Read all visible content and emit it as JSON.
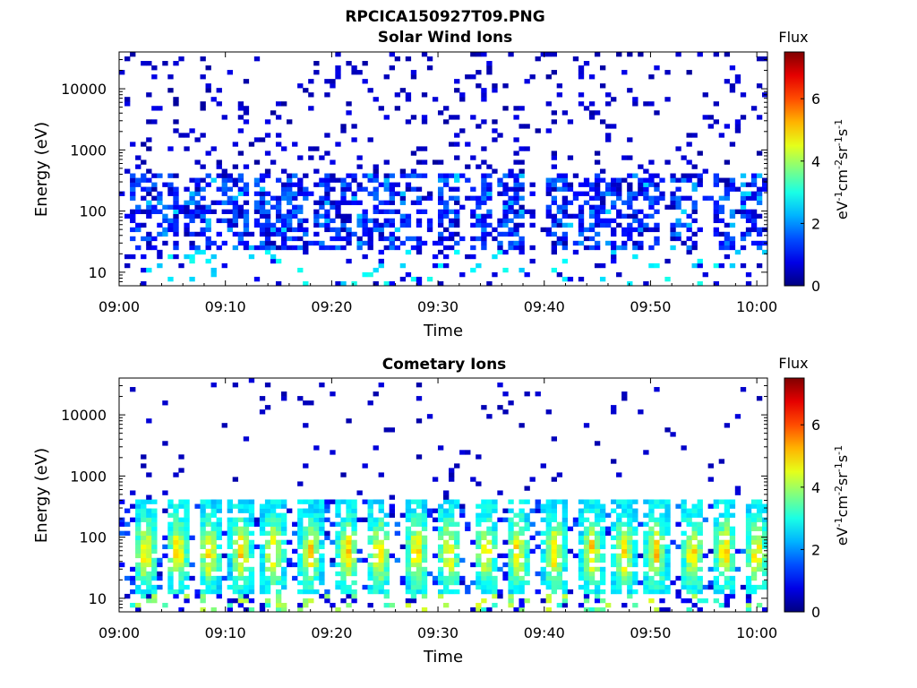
{
  "figure": {
    "filename_title": "RPCICA150927T09.PNG"
  },
  "colorbar": {
    "title": "Flux",
    "label_base": "eV",
    "label_parts": [
      "eV",
      "-1",
      "cm",
      "-2",
      "sr",
      "-1",
      "s",
      "-1"
    ],
    "label_text": "eV-1cm-2sr-1s-1",
    "range": [
      0,
      7.5
    ],
    "ticks": [
      "0",
      "2",
      "4",
      "6"
    ],
    "colormap": "jet"
  },
  "chart_data": [
    {
      "type": "heatmap",
      "title": "Solar Wind Ions",
      "xlabel": "Time",
      "ylabel": "Energy (eV)",
      "x_ticks": [
        "09:00",
        "09:10",
        "09:20",
        "09:30",
        "09:40",
        "09:50",
        "10:00"
      ],
      "x_range": [
        "09:00",
        "10:01"
      ],
      "y_scale": "log",
      "y_ticks": [
        "10",
        "100",
        "1000",
        "10000"
      ],
      "y_range": [
        6,
        40000
      ],
      "z_label": "Flux",
      "z_range": [
        0,
        7.5
      ],
      "description_of_values": "sparse low flux (~0-1.5) across 10 eV-40 keV, denser clusters 30-300 eV with values up to ~2.5, occasional 2.5-3 near 10 eV",
      "bursts_minutes": [
        2,
        4.5,
        7.5,
        11,
        14,
        16.5,
        19.5,
        22,
        24.5,
        27.5,
        31,
        34,
        37,
        41.5,
        44.5,
        47,
        49.5,
        53,
        57,
        59.5
      ]
    },
    {
      "type": "heatmap",
      "title": "Cometary Ions",
      "xlabel": "Time",
      "ylabel": "Energy (eV)",
      "x_ticks": [
        "09:00",
        "09:10",
        "09:20",
        "09:30",
        "09:40",
        "09:50",
        "10:00"
      ],
      "x_range": [
        "09:00",
        "10:01"
      ],
      "y_scale": "log",
      "y_ticks": [
        "10",
        "100",
        "1000",
        "10000"
      ],
      "y_range": [
        6,
        40000
      ],
      "z_label": "Flux",
      "z_range": [
        0,
        7.5
      ],
      "description_of_values": "periodic bursts ~every 3 min, 20-300 eV with flux 3-5.5 (peaks near 40-100 eV), sparse ~0.5 above 1 keV",
      "bursts_minutes": [
        2.5,
        5.5,
        8.5,
        11.5,
        14.5,
        18,
        21.5,
        24.5,
        28,
        31,
        34.5,
        37.5,
        41,
        44.5,
        47.5,
        50.5,
        54,
        57,
        60
      ]
    }
  ]
}
